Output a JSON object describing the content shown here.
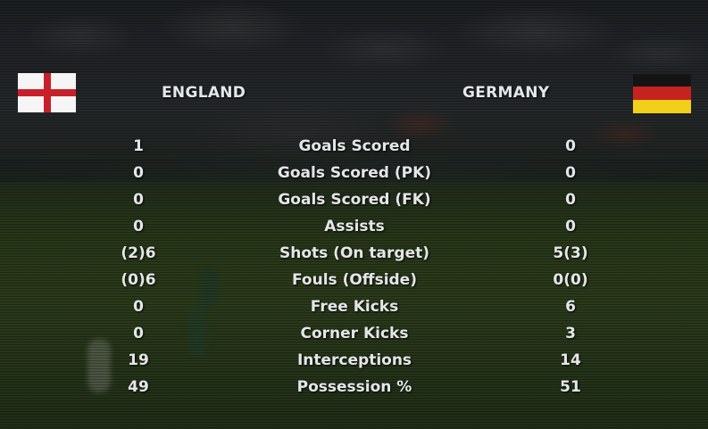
{
  "home": {
    "name": "ENGLAND",
    "flag": {
      "type": "st-george-cross",
      "background": "#f5f5f5",
      "cross": "#c8202a"
    }
  },
  "away": {
    "name": "GERMANY",
    "flag": {
      "type": "tricolor-horizontal",
      "colors": [
        "#141414",
        "#c4231f",
        "#f2cf1a"
      ]
    }
  },
  "stats": [
    {
      "label": "Goals Scored",
      "home": "1",
      "away": "0"
    },
    {
      "label": "Goals Scored (PK)",
      "home": "0",
      "away": "0"
    },
    {
      "label": "Goals Scored (FK)",
      "home": "0",
      "away": "0"
    },
    {
      "label": "Assists",
      "home": "0",
      "away": "0"
    },
    {
      "label": "Shots (On target)",
      "home": "(2)6",
      "away": "5(3)"
    },
    {
      "label": "Fouls (Offside)",
      "home": "(0)6",
      "away": "0(0)"
    },
    {
      "label": "Free Kicks",
      "home": "0",
      "away": "6"
    },
    {
      "label": "Corner Kicks",
      "home": "0",
      "away": "3"
    },
    {
      "label": "Interceptions",
      "home": "19",
      "away": "14"
    },
    {
      "label": "Possession %",
      "home": "49",
      "away": "51"
    }
  ],
  "colors": {
    "text": "#e4e6e8"
  }
}
